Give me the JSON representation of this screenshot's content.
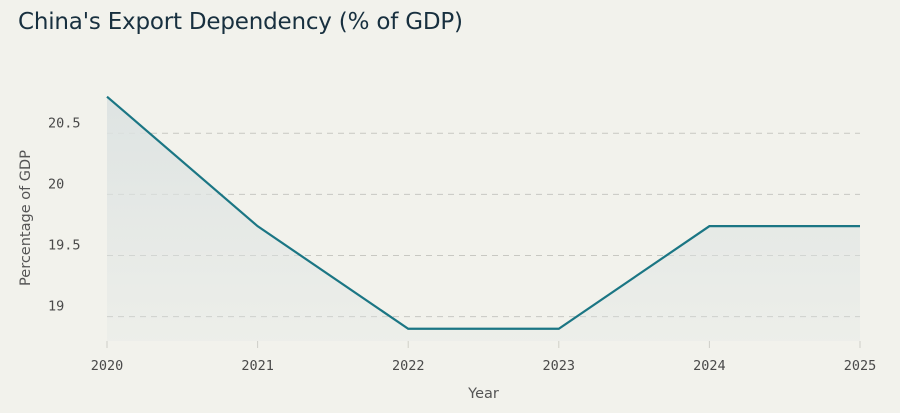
{
  "chart_data": {
    "type": "area",
    "title": "China's Export Dependency (% of GDP)",
    "xlabel": "Year",
    "ylabel": "Percentage of GDP",
    "x": [
      "2020",
      "2021",
      "2022",
      "2023",
      "2024",
      "2025"
    ],
    "series": [
      {
        "values": [
          20.8,
          19.74,
          18.9,
          18.9,
          19.74,
          19.74
        ]
      }
    ],
    "ylim": [
      18.8,
      21.1
    ],
    "yticks": [
      19,
      19.5,
      20,
      20.5
    ],
    "ytick_labels": [
      "19",
      "19.5",
      "20",
      "20.5"
    ],
    "grid": true,
    "line_color": "#1b7684",
    "fill_color": "#dde3e2"
  }
}
